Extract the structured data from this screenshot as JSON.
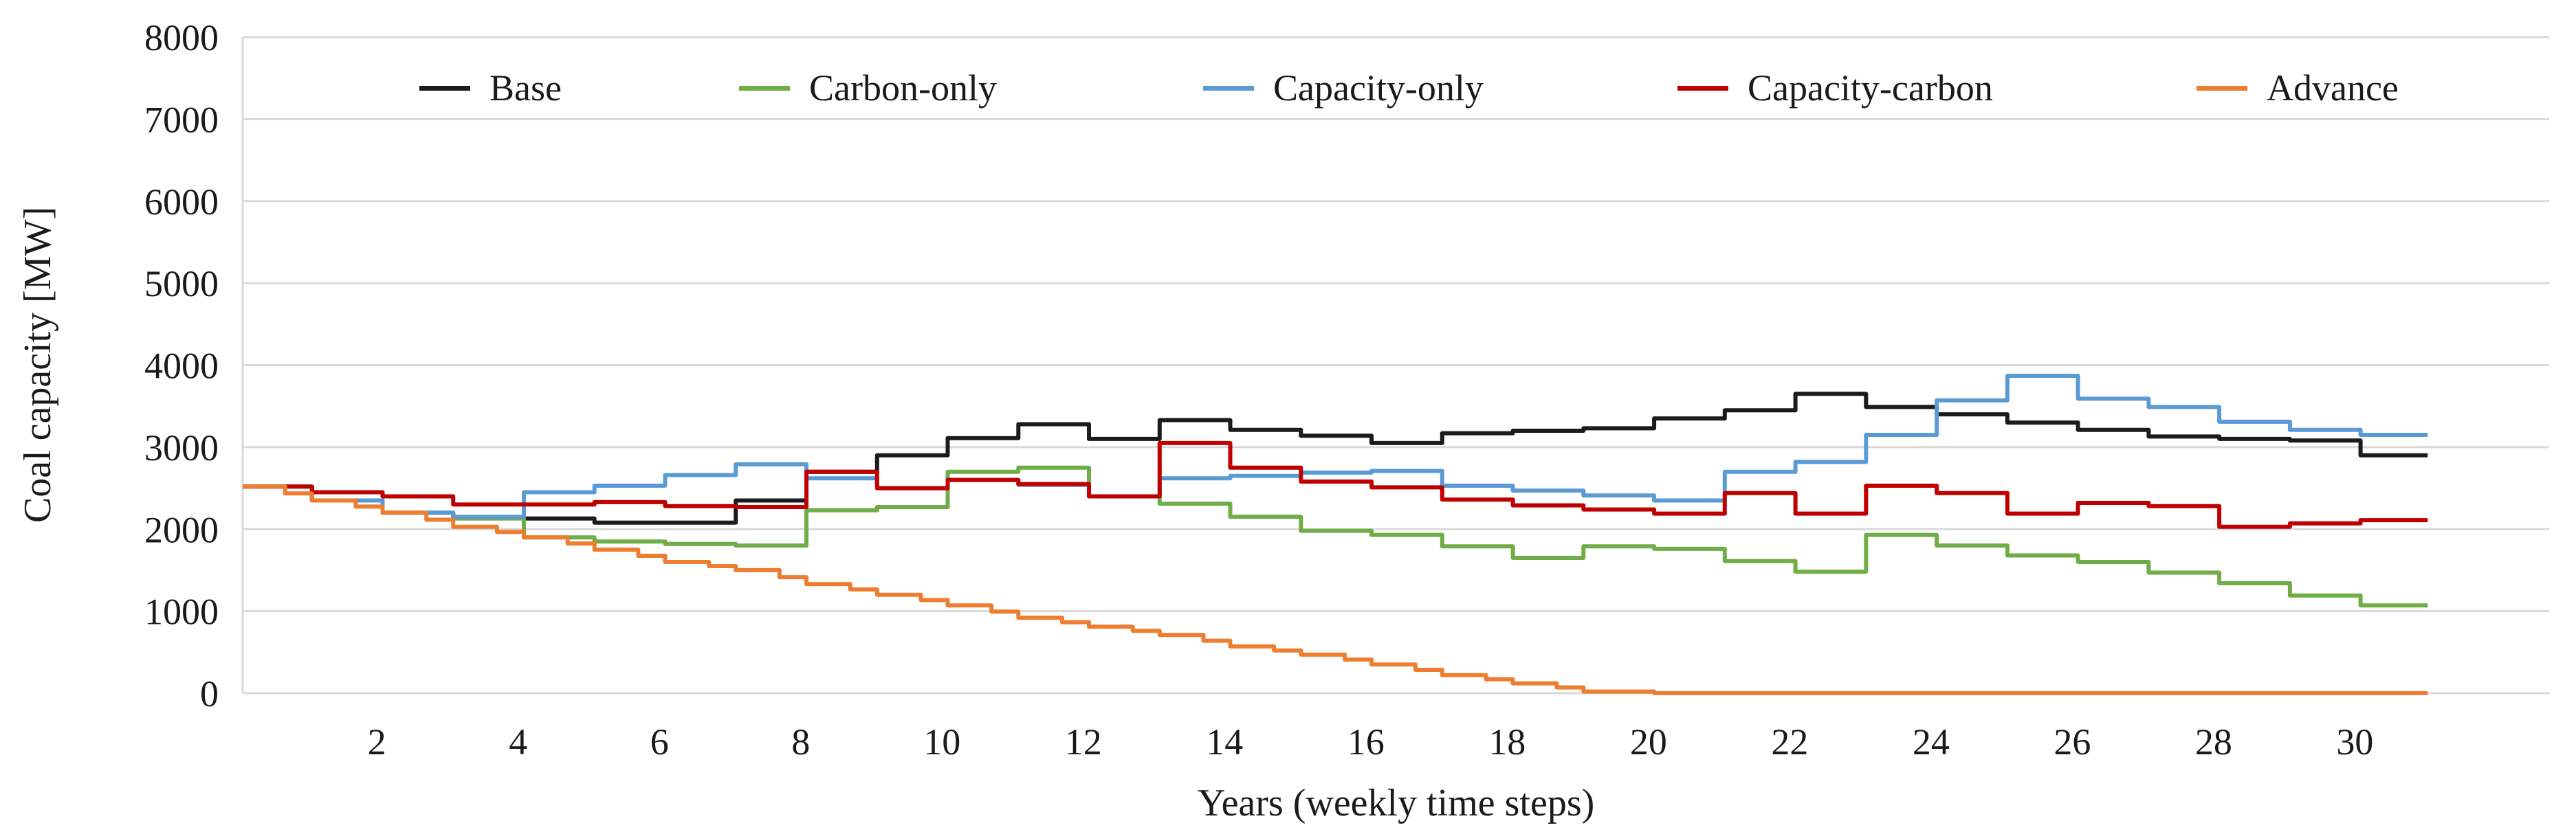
{
  "colors": {
    "background": "#ffffff",
    "grid": "#d9d9d9",
    "text": "#1a1a1a",
    "base": "#1b1b1b",
    "carbon_only": "#70ad47",
    "capacity_only": "#5b9bd5",
    "capacity_carbon": "#c00000",
    "advance": "#ed7d31"
  },
  "chart_data": {
    "type": "line",
    "style": "step",
    "title": "",
    "xlabel": "Years (weekly time steps)",
    "ylabel": "Coal capacity [MW]",
    "xlim": [
      0.1,
      32.75
    ],
    "ylim": [
      0,
      8000
    ],
    "xticks": [
      2,
      4,
      6,
      8,
      10,
      12,
      14,
      16,
      18,
      20,
      22,
      24,
      26,
      28,
      30
    ],
    "yticks": [
      0,
      1000,
      2000,
      3000,
      4000,
      5000,
      6000,
      7000,
      8000
    ],
    "grid": "horizontal",
    "legend_position": "top",
    "x_start": 0.1,
    "x_end": 31.03,
    "step_offset": 0.08,
    "years": [
      0,
      1,
      2,
      3,
      4,
      5,
      6,
      7,
      8,
      9,
      10,
      11,
      12,
      13,
      14,
      15,
      16,
      17,
      18,
      19,
      20,
      21,
      22,
      23,
      24,
      25,
      26,
      27,
      28,
      29,
      30
    ],
    "series": [
      {
        "name": "Base",
        "color": "#1b1b1b",
        "substeps": false,
        "values": [
          2520,
          2350,
          2200,
          2140,
          2130,
          2080,
          2080,
          2350,
          2700,
          2900,
          3110,
          3280,
          3100,
          3330,
          3210,
          3140,
          3050,
          3170,
          3200,
          3230,
          3350,
          3450,
          3650,
          3490,
          3400,
          3300,
          3210,
          3130,
          3100,
          3080,
          2900
        ]
      },
      {
        "name": "Carbon-only",
        "color": "#70ad47",
        "substeps": false,
        "values": [
          2520,
          2350,
          2200,
          2130,
          1900,
          1850,
          1820,
          1800,
          2230,
          2270,
          2700,
          2750,
          2400,
          2310,
          2150,
          1980,
          1930,
          1790,
          1650,
          1790,
          1760,
          1610,
          1480,
          1930,
          1800,
          1680,
          1600,
          1470,
          1340,
          1190,
          1070
        ]
      },
      {
        "name": "Capacity-only",
        "color": "#5b9bd5",
        "substeps": false,
        "values": [
          2520,
          2350,
          2200,
          2150,
          2450,
          2530,
          2660,
          2790,
          2620,
          2500,
          2600,
          2540,
          2400,
          2620,
          2650,
          2690,
          2710,
          2530,
          2470,
          2410,
          2350,
          2700,
          2820,
          3150,
          3570,
          3870,
          3590,
          3490,
          3310,
          3210,
          3150
        ]
      },
      {
        "name": "Capacity-carbon",
        "color": "#c00000",
        "substeps": false,
        "values": [
          2520,
          2450,
          2400,
          2300,
          2300,
          2330,
          2280,
          2270,
          2700,
          2500,
          2600,
          2550,
          2400,
          3050,
          2750,
          2580,
          2510,
          2360,
          2290,
          2240,
          2190,
          2440,
          2190,
          2530,
          2440,
          2190,
          2320,
          2280,
          2030,
          2070,
          2110
        ]
      },
      {
        "name": "Advance",
        "color": "#ed7d31",
        "substeps": true,
        "values": [
          2520,
          2350,
          2200,
          2030,
          1900,
          1750,
          1600,
          1500,
          1330,
          1200,
          1070,
          920,
          810,
          710,
          570,
          470,
          350,
          220,
          120,
          20,
          0,
          0,
          0,
          0,
          0,
          0,
          0,
          0,
          0,
          0,
          0
        ]
      }
    ]
  }
}
